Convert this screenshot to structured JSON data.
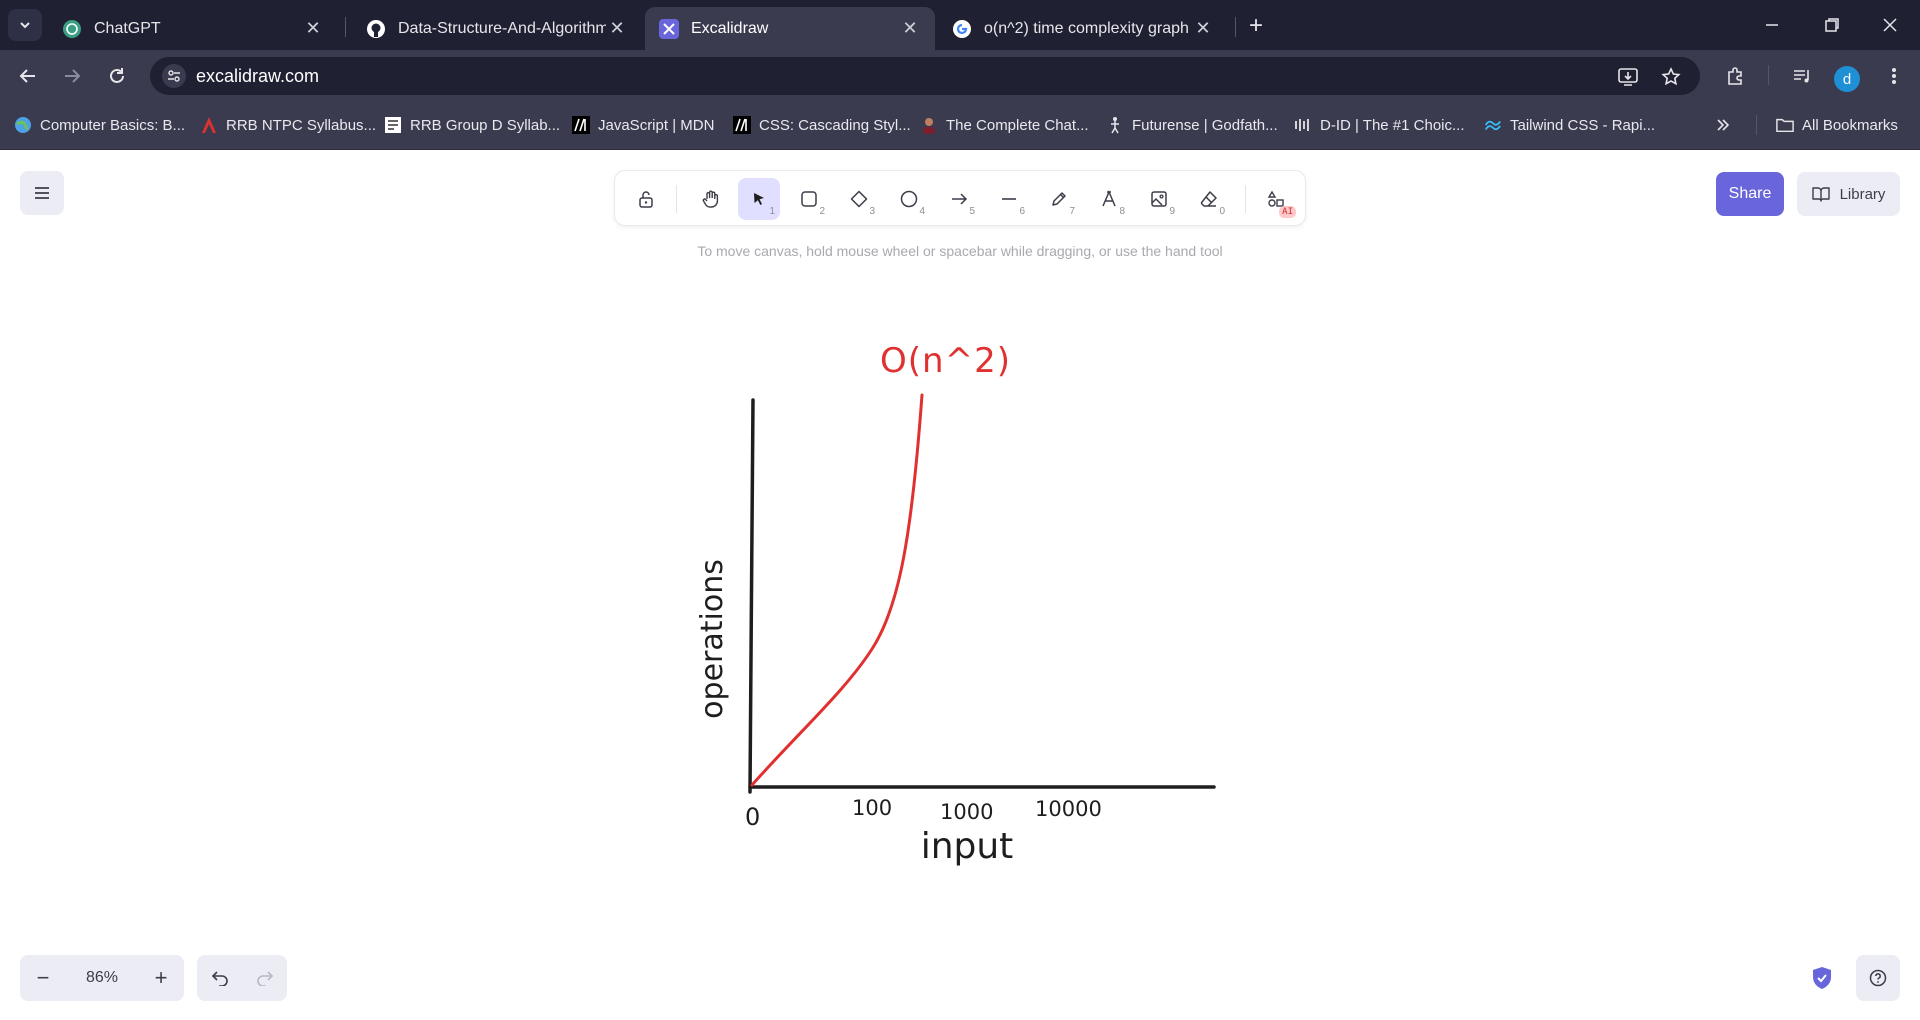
{
  "browser": {
    "tabs": [
      {
        "title": "ChatGPT",
        "icon": "chatgpt-icon"
      },
      {
        "title": "Data-Structure-And-Algorithm/",
        "icon": "github-icon"
      },
      {
        "title": "Excalidraw",
        "icon": "excalidraw-icon",
        "active": true
      },
      {
        "title": "o(n^2) time complexity graph -",
        "icon": "google-icon"
      }
    ],
    "url": "excalidraw.com",
    "profile_initial": "d",
    "bookmarks": [
      {
        "label": "Computer Basics: B...",
        "icon": "globe-icon"
      },
      {
        "label": "RRB NTPC Syllabus...",
        "icon": "red-a-icon"
      },
      {
        "label": "RRB Group D Syllab...",
        "icon": "doc-icon"
      },
      {
        "label": "JavaScript | MDN",
        "icon": "mdn-icon"
      },
      {
        "label": "CSS: Cascading Styl...",
        "icon": "mdn-icon"
      },
      {
        "label": "The Complete Chat...",
        "icon": "person-icon"
      },
      {
        "label": "Futurense | Godfath...",
        "icon": "figure-icon"
      },
      {
        "label": "D-ID | The #1 Choic...",
        "icon": "did-icon"
      },
      {
        "label": "Tailwind CSS - Rapi...",
        "icon": "tailwind-icon"
      }
    ],
    "all_bookmarks_label": "All Bookmarks"
  },
  "toolbar": {
    "tools": [
      {
        "name": "hand",
        "num": ""
      },
      {
        "name": "selection",
        "num": "1",
        "active": true
      },
      {
        "name": "rectangle",
        "num": "2"
      },
      {
        "name": "diamond",
        "num": "3"
      },
      {
        "name": "ellipse",
        "num": "4"
      },
      {
        "name": "arrow",
        "num": "5"
      },
      {
        "name": "line",
        "num": "6"
      },
      {
        "name": "draw",
        "num": "7"
      },
      {
        "name": "text",
        "num": "8"
      },
      {
        "name": "image",
        "num": "9"
      },
      {
        "name": "eraser",
        "num": "0"
      }
    ],
    "ai_badge": "AI"
  },
  "hint": "To move canvas, hold mouse wheel or spacebar while dragging, or use the hand tool",
  "share_label": "Share",
  "library_label": "Library",
  "zoom": {
    "value": "86%",
    "minus": "−",
    "plus": "+"
  },
  "colors": {
    "accent": "#6965db",
    "curve": "#e03131",
    "ink": "#1e1e1e"
  },
  "drawing": {
    "curve_label": "O(n^2)",
    "y_label": "operations",
    "x_label": "input",
    "x_ticks": [
      "0",
      "100",
      "1000",
      "10000"
    ]
  }
}
